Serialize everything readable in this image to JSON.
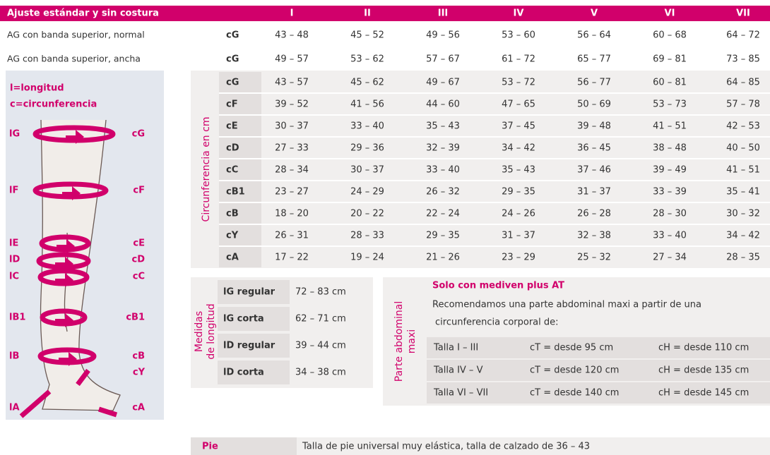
{
  "header": {
    "title": "Ajuste estándar y sin costura",
    "sizes": [
      "I",
      "II",
      "III",
      "IV",
      "V",
      "VI",
      "VII"
    ]
  },
  "ag_rows": [
    {
      "label": "AG con banda superior, normal",
      "measure": "cG",
      "values": [
        "43 – 48",
        "45 – 52",
        "49 – 56",
        "53 – 60",
        "56 – 64",
        "60 – 68",
        "64 – 72"
      ]
    },
    {
      "label": "AG con banda superior, ancha",
      "measure": "cG",
      "values": [
        "49 – 57",
        "53 – 62",
        "57 – 67",
        "61 – 72",
        "65 – 77",
        "69 – 81",
        "73 – 85"
      ]
    }
  ],
  "circumference": {
    "label": "Circunferencia en cm",
    "rows": [
      {
        "measure": "cG",
        "values": [
          "43 – 57",
          "45 – 62",
          "49 – 67",
          "53 – 72",
          "56 – 77",
          "60 – 81",
          "64 – 85"
        ]
      },
      {
        "measure": "cF",
        "values": [
          "39 – 52",
          "41 – 56",
          "44 – 60",
          "47 – 65",
          "50 – 69",
          "53 – 73",
          "57 – 78"
        ]
      },
      {
        "measure": "cE",
        "values": [
          "30 – 37",
          "33 – 40",
          "35 – 43",
          "37 – 45",
          "39 – 48",
          "41 – 51",
          "42 – 53"
        ]
      },
      {
        "measure": "cD",
        "values": [
          "27 – 33",
          "29 – 36",
          "32 – 39",
          "34 – 42",
          "36 – 45",
          "38 – 48",
          "40 – 50"
        ]
      },
      {
        "measure": "cC",
        "values": [
          "28 – 34",
          "30 – 37",
          "33 – 40",
          "35 – 43",
          "37 – 46",
          "39 – 49",
          "41 – 51"
        ]
      },
      {
        "measure": "cB1",
        "values": [
          "23 – 27",
          "24 – 29",
          "26 – 32",
          "29 – 35",
          "31 – 37",
          "33 – 39",
          "35 – 41"
        ]
      },
      {
        "measure": "cB",
        "values": [
          "18 – 20",
          "20 – 22",
          "22 – 24",
          "24 – 26",
          "26 – 28",
          "28 – 30",
          "30 – 32"
        ]
      },
      {
        "measure": "cY",
        "values": [
          "26 – 31",
          "28 – 33",
          "29 – 35",
          "31 – 37",
          "32 – 38",
          "33 – 40",
          "34 – 42"
        ]
      },
      {
        "measure": "cA",
        "values": [
          "17 – 22",
          "19 – 24",
          "21 – 26",
          "23 – 29",
          "25 – 32",
          "27 – 34",
          "28 – 35"
        ]
      }
    ]
  },
  "leg": {
    "legend": [
      "l=longitud",
      "c=circunferencia"
    ],
    "left_labels": [
      "lG",
      "lF",
      "lE",
      "lD",
      "lC",
      "lB1",
      "lB",
      "lA"
    ],
    "right_labels": [
      "cG",
      "cF",
      "cE",
      "cD",
      "cC",
      "cB1",
      "cB",
      "cY",
      "cA"
    ]
  },
  "length": {
    "label": [
      "Medidas",
      "de longitud"
    ],
    "rows": [
      {
        "name": "lG regular",
        "value": "72 – 83 cm"
      },
      {
        "name": "lG corta",
        "value": "62 – 71 cm"
      },
      {
        "name": "lD regular",
        "value": "39 – 44 cm"
      },
      {
        "name": "lD corta",
        "value": "34 – 38 cm"
      }
    ]
  },
  "abdominal": {
    "label": [
      "Parte abdominal",
      "maxi"
    ],
    "title": "Solo con mediven plus AT",
    "text": [
      "Recomendamos una parte abdominal maxi a partir de una",
      "circunferencia corporal de:"
    ],
    "rows": [
      [
        "Talla I – III",
        "cT = desde 95 cm",
        "cH = desde 110 cm"
      ],
      [
        "Talla IV – V",
        "cT = desde 120 cm",
        "cH = desde 135 cm"
      ],
      [
        "Talla VI – VII",
        "cT = desde 140 cm",
        "cH = desde 145 cm"
      ]
    ]
  },
  "foot": {
    "label": "Pie",
    "text": "Talla de pie universal muy elástica, talla de calzado de 36 – 43"
  }
}
